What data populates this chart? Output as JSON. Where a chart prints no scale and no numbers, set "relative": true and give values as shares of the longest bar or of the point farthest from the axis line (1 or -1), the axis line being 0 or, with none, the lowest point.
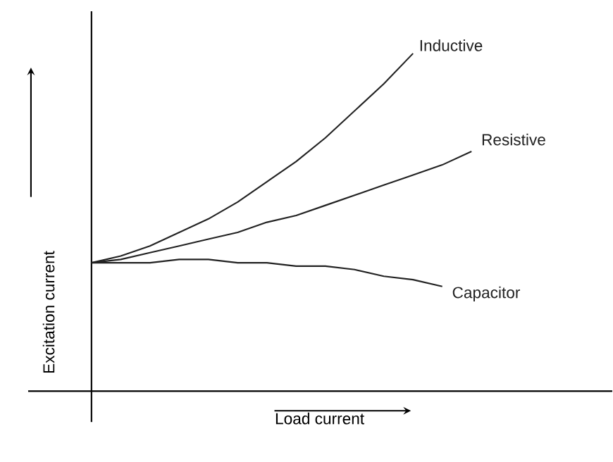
{
  "chart_data": {
    "type": "line",
    "relative": true,
    "xlabel": "Load current",
    "ylabel": "Excitation current",
    "categories": [
      null,
      null,
      null,
      null,
      null,
      null,
      null,
      null,
      null,
      null,
      null,
      null,
      null,
      null
    ],
    "series": [
      {
        "name": "Inductive",
        "color": "#222222",
        "values": [
          0.38,
          0.4,
          0.43,
          0.47,
          0.51,
          0.56,
          0.62,
          0.68,
          0.75,
          0.83,
          0.91,
          1.0,
          null,
          null
        ]
      },
      {
        "name": "Resistive",
        "color": "#222222",
        "values": [
          0.38,
          0.39,
          0.41,
          0.43,
          0.45,
          0.47,
          0.5,
          0.52,
          0.55,
          0.58,
          0.61,
          0.64,
          0.67,
          0.71
        ]
      },
      {
        "name": "Capacitor",
        "color": "#222222",
        "values": [
          0.38,
          0.38,
          0.38,
          0.39,
          0.39,
          0.38,
          0.38,
          0.37,
          0.37,
          0.36,
          0.34,
          0.33,
          0.31,
          null
        ]
      }
    ],
    "legend": false,
    "marker": "none",
    "line_style": "solid"
  }
}
